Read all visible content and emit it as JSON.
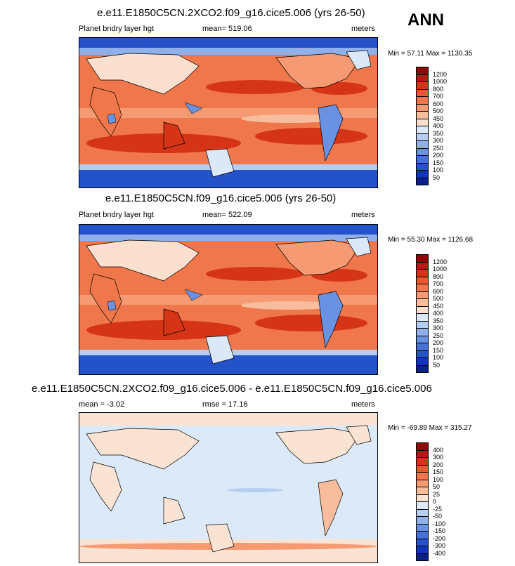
{
  "annual_label": "ANN",
  "panels": [
    {
      "title": "e.e11.E1850C5CN.2XCO2.f09_g16.cice5.006 (yrs 26-50)",
      "left_label": "Planet bndry layer hgt",
      "center_label": "mean= 519.06",
      "right_label": "meters",
      "minmax": "Min =  57.11 Max = 1130.35",
      "palette": "absolute",
      "colorbar_labels": [
        "1200",
        "1000",
        "800",
        "700",
        "600",
        "500",
        "450",
        "400",
        "350",
        "300",
        "250",
        "200",
        "150",
        "100",
        "50"
      ]
    },
    {
      "title": "e.e11.E1850C5CN.f09_g16.cice5.006 (yrs 26-50)",
      "left_label": "Planet bndry layer hgt",
      "center_label": "mean= 522.09",
      "right_label": "meters",
      "minmax": "Min =  55.30 Max = 1126.68",
      "palette": "absolute",
      "colorbar_labels": [
        "1200",
        "1000",
        "800",
        "700",
        "600",
        "500",
        "450",
        "400",
        "350",
        "300",
        "250",
        "200",
        "150",
        "100",
        "50"
      ]
    },
    {
      "title": "e.e11.E1850C5CN.2XCO2.f09_g16.cice5.006 - e.e11.E1850C5CN.f09_g16.cice5.006",
      "left_label": "mean =  -3.02",
      "center_label": "rmse =  17.16",
      "right_label": "meters",
      "minmax": "Min = -69.89 Max = 315.27",
      "palette": "difference",
      "colorbar_labels": [
        "400",
        "300",
        "200",
        "150",
        "100",
        "50",
        "25",
        "0",
        "-25",
        "-50",
        "-100",
        "-150",
        "-200",
        "-300",
        "-400"
      ]
    }
  ],
  "palettes": {
    "absolute": [
      "#8b0a0a",
      "#b51a10",
      "#d53416",
      "#e85a2e",
      "#f0774b",
      "#f59a72",
      "#f8bd9c",
      "#fbe0cf",
      "#dbe8f7",
      "#b5cdf0",
      "#8fb0ea",
      "#6a92e2",
      "#4472d6",
      "#2452c9",
      "#0f35b8",
      "#081f8c"
    ],
    "difference": [
      "#8b0a0a",
      "#b51a10",
      "#d53416",
      "#e85a2e",
      "#f0774b",
      "#f59a72",
      "#f8bd9c",
      "#fbe3d3",
      "#dbe9f8",
      "#b5cdf0",
      "#8fb0ea",
      "#6a92e2",
      "#4472d6",
      "#2452c9",
      "#0f35b8",
      "#081f8c"
    ]
  }
}
